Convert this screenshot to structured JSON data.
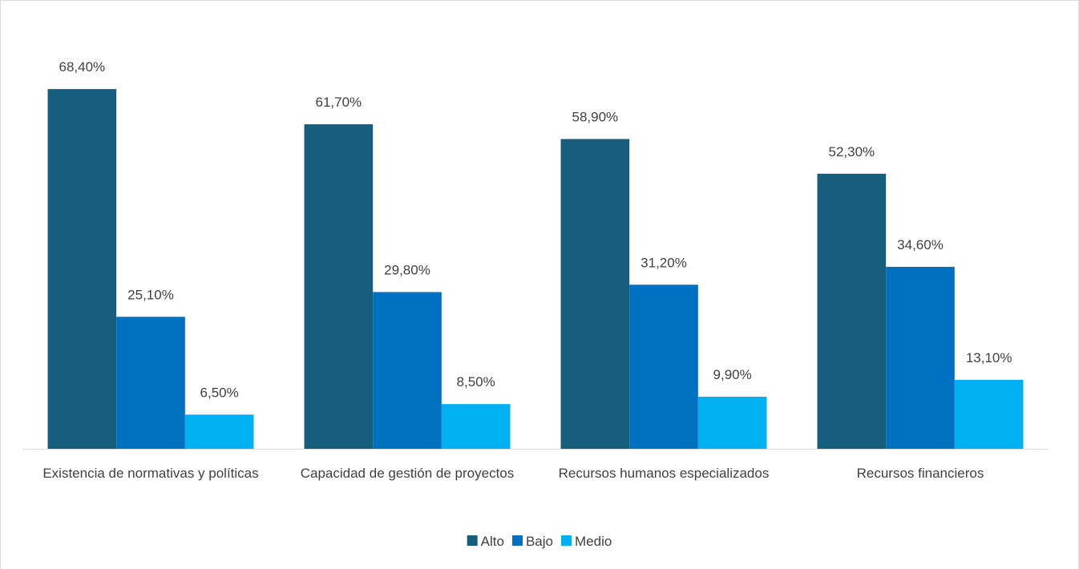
{
  "chart_data": {
    "type": "bar",
    "categories": [
      "Existencia de normativas y políticas",
      "Capacidad de gestión de proyectos",
      "Recursos humanos especializados",
      "Recursos financieros"
    ],
    "series": [
      {
        "name": "Alto",
        "color": "#175e7e",
        "values": [
          68.4,
          61.7,
          58.9,
          52.3
        ],
        "value_labels": [
          "68,40%",
          "61,70%",
          "58,90%",
          "52,30%"
        ]
      },
      {
        "name": "Bajo",
        "color": "#0070c0",
        "values": [
          25.1,
          29.8,
          31.2,
          34.6
        ],
        "value_labels": [
          "25,10%",
          "29,80%",
          "31,20%",
          "34,60%"
        ]
      },
      {
        "name": "Medio",
        "color": "#00b0f0",
        "values": [
          6.5,
          8.5,
          9.9,
          13.1
        ],
        "value_labels": [
          "6,50%",
          "8,50%",
          "9,90%",
          "13,10%"
        ]
      }
    ],
    "ylim": [
      0,
      80
    ],
    "legend": "bottom"
  }
}
